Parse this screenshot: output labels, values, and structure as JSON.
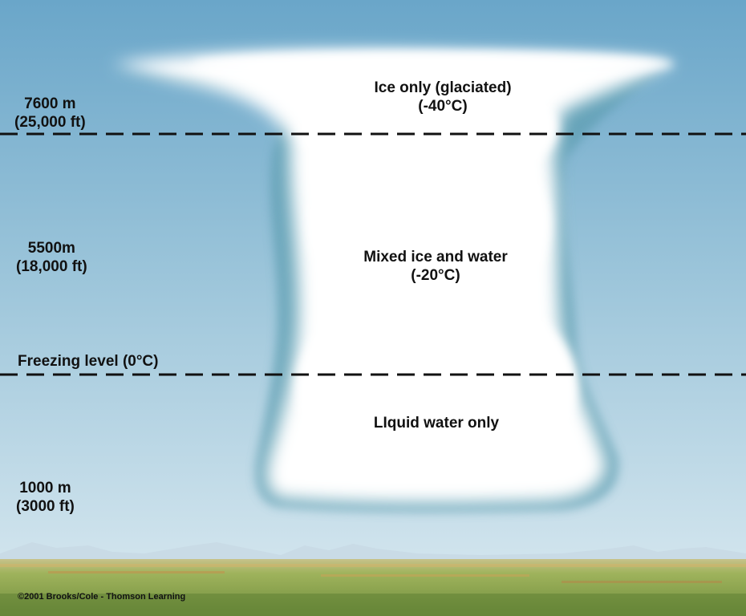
{
  "labels": {
    "alt_top_m": "7600 m",
    "alt_top_ft": "(25,000 ft)",
    "alt_mid_m": "5500m",
    "alt_mid_ft": "(18,000 ft)",
    "freezing_level": "Freezing level (0°C)",
    "alt_low_m": "1000 m",
    "alt_low_ft": "(3000 ft)",
    "zone_top": "Ice only (glaciated)",
    "zone_top_temp": "(-40°C)",
    "zone_mid": "Mixed ice and water",
    "zone_mid_temp": "(-20°C)",
    "zone_low": "LIquid water only"
  },
  "copyright": "©2001 Brooks/Cole - Thomson Learning",
  "colors": {
    "sky_top": "#6aa6c9",
    "sky_bottom": "#dbeaf1",
    "cloud": "#ffffff",
    "cloud_edge": "#5f9fb2",
    "mountains": "#c9dbe6",
    "ground": "#8faa52",
    "dash_line": "#111111"
  }
}
